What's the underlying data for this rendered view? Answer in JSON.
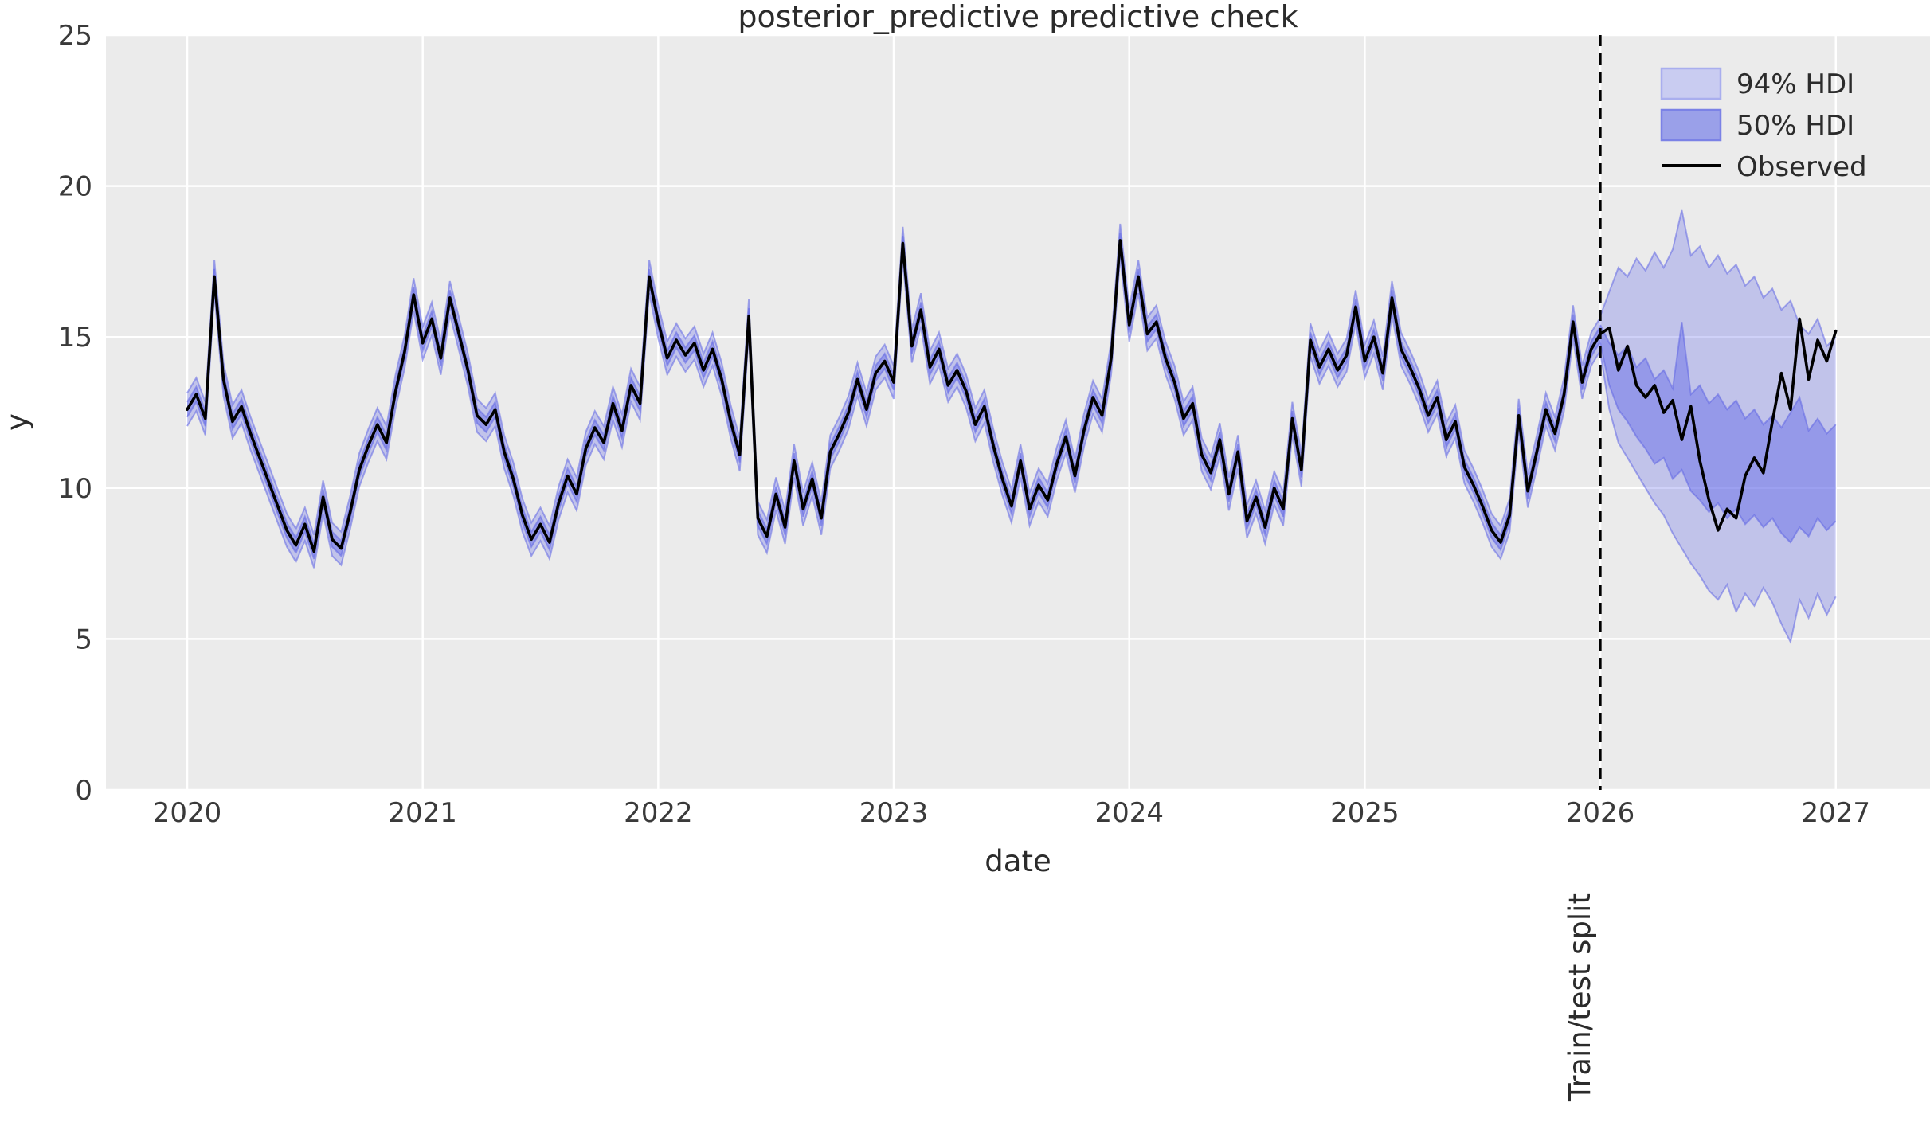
{
  "chart_data": {
    "type": "line",
    "title": "posterior_predictive predictive check",
    "xlabel": "date",
    "ylabel": "y",
    "xlim": [
      2019.655,
      2027.4
    ],
    "ylim": [
      0,
      25
    ],
    "grid": true,
    "background": "#ebebeb",
    "gridline_color": "#ffffff",
    "xtick_values": [
      2020,
      2021,
      2022,
      2023,
      2024,
      2025,
      2026,
      2027
    ],
    "xtick_labels": [
      "2020",
      "2021",
      "2022",
      "2023",
      "2024",
      "2025",
      "2026",
      "2027"
    ],
    "ytick_values": [
      0,
      5,
      10,
      15,
      20,
      25
    ],
    "ytick_labels": [
      "0",
      "5",
      "10",
      "15",
      "20",
      "25"
    ],
    "legend_position": "upper right",
    "legend": [
      {
        "label": "94% HDI",
        "type": "patch",
        "fill": "#c9ccf1",
        "edge": "#a9aeee"
      },
      {
        "label": "50% HDI",
        "type": "patch",
        "fill": "#9aa0e9",
        "edge": "#7b82e6"
      },
      {
        "label": "Observed",
        "type": "line",
        "color": "#000000"
      }
    ],
    "colors": {
      "hdi94_fill": "rgba(106,111,232,0.32)",
      "hdi50_fill": "rgba(106,111,232,0.50)",
      "band_edge": "rgba(96,102,228,0.55)",
      "observed_line": "#000000",
      "split_line": "#000000"
    },
    "split": {
      "x": 2026.0,
      "label": "Train/test split",
      "style": "dashed"
    },
    "observed": {
      "x_start": 2020.0,
      "x_step": 0.0384615,
      "values": [
        12.6,
        13.1,
        12.3,
        17.0,
        13.6,
        12.2,
        12.7,
        11.8,
        11.0,
        10.2,
        9.4,
        8.6,
        8.1,
        8.8,
        7.9,
        9.7,
        8.3,
        8.0,
        9.2,
        10.6,
        11.4,
        12.1,
        11.5,
        13.2,
        14.5,
        16.4,
        14.8,
        15.6,
        14.3,
        16.3,
        15.1,
        13.9,
        12.4,
        12.1,
        12.6,
        11.2,
        10.3,
        9.1,
        8.3,
        8.8,
        8.2,
        9.5,
        10.4,
        9.8,
        11.3,
        12.0,
        11.5,
        12.8,
        11.9,
        13.4,
        12.8,
        17.0,
        15.5,
        14.3,
        14.9,
        14.4,
        14.8,
        13.9,
        14.6,
        13.6,
        12.2,
        11.1,
        15.7,
        9.0,
        8.4,
        9.8,
        8.7,
        10.9,
        9.3,
        10.3,
        9.0,
        11.2,
        11.8,
        12.5,
        13.6,
        12.6,
        13.8,
        14.2,
        13.5,
        18.1,
        14.7,
        15.9,
        14.0,
        14.6,
        13.4,
        13.9,
        13.2,
        12.1,
        12.7,
        11.4,
        10.3,
        9.4,
        10.9,
        9.3,
        10.1,
        9.6,
        10.8,
        11.7,
        10.4,
        11.9,
        13.0,
        12.4,
        14.3,
        18.2,
        15.4,
        17.0,
        15.1,
        15.5,
        14.3,
        13.5,
        12.3,
        12.8,
        11.1,
        10.5,
        11.6,
        9.8,
        11.2,
        8.9,
        9.7,
        8.7,
        10.0,
        9.3,
        12.3,
        10.6,
        14.9,
        14.0,
        14.6,
        13.9,
        14.4,
        16.0,
        14.2,
        15.0,
        13.8,
        16.3,
        14.6,
        14.0,
        13.3,
        12.4,
        13.0,
        11.6,
        12.2,
        10.7,
        10.1,
        9.4,
        8.6,
        8.2,
        9.1,
        12.4,
        9.9,
        11.2,
        12.6,
        11.8,
        13.1,
        15.5,
        13.5,
        14.6,
        15.1,
        15.3,
        13.9,
        14.7,
        13.4,
        13.0,
        13.4,
        12.5,
        12.9,
        11.6,
        12.7,
        10.9,
        9.6,
        8.6,
        9.3,
        9.0,
        10.4,
        11.0,
        10.5,
        12.2,
        13.8,
        12.6,
        15.6,
        13.6,
        14.9,
        14.2,
        15.2
      ]
    },
    "train_hdi": {
      "range": [
        2020.0,
        2026.0
      ],
      "hdi94_halfwidth": 0.55,
      "hdi50_halfwidth": 0.25
    },
    "forecast_hdi": {
      "x_start": 2026.0,
      "x_step": 0.0384615,
      "hdi94_upper": [
        15.7,
        16.5,
        17.3,
        17.0,
        17.6,
        17.2,
        17.8,
        17.3,
        17.9,
        19.2,
        17.7,
        18.0,
        17.3,
        17.7,
        17.1,
        17.4,
        16.7,
        17.0,
        16.3,
        16.6,
        15.9,
        16.2,
        15.4,
        15.1,
        15.6,
        14.7,
        15.0
      ],
      "hdi94_lower": [
        14.5,
        12.6,
        11.5,
        11.0,
        10.5,
        10.0,
        9.5,
        9.1,
        8.5,
        8.0,
        7.5,
        7.1,
        6.6,
        6.3,
        6.8,
        5.9,
        6.5,
        6.1,
        6.7,
        6.2,
        5.5,
        4.9,
        6.3,
        5.7,
        6.5,
        5.8,
        6.4
      ],
      "hdi50_upper": [
        15.4,
        14.8,
        14.4,
        14.7,
        14.0,
        14.3,
        13.6,
        13.9,
        13.3,
        15.5,
        13.1,
        13.4,
        12.8,
        13.1,
        12.6,
        12.9,
        12.3,
        12.6,
        12.1,
        12.4,
        12.0,
        12.5,
        13.0,
        11.9,
        12.3,
        11.8,
        12.1
      ],
      "hdi50_lower": [
        14.8,
        13.4,
        12.6,
        12.2,
        11.7,
        11.3,
        10.8,
        11.0,
        10.3,
        10.6,
        9.9,
        9.6,
        9.2,
        9.5,
        9.0,
        9.3,
        8.8,
        9.1,
        8.7,
        9.0,
        8.5,
        8.2,
        8.7,
        8.4,
        9.0,
        8.6,
        8.9
      ]
    }
  }
}
